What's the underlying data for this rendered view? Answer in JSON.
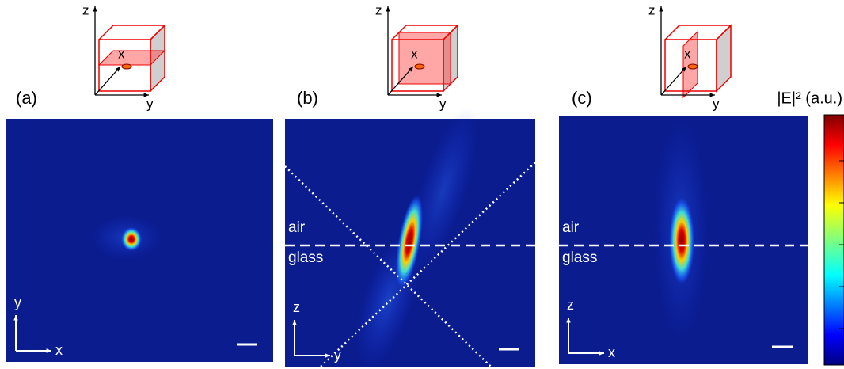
{
  "panels": [
    {
      "label": "(a)",
      "inset_axes": [
        "z",
        "y",
        "x"
      ],
      "axes": [
        "y",
        "x"
      ]
    },
    {
      "label": "(b)",
      "inset_axes": [
        "z",
        "y",
        "x"
      ],
      "axes": [
        "z",
        "y"
      ],
      "regions": [
        "air",
        "glass"
      ]
    },
    {
      "label": "(c)",
      "inset_axes": [
        "z",
        "y",
        "x"
      ],
      "axes": [
        "z",
        "x"
      ],
      "regions": [
        "air",
        "glass"
      ]
    }
  ],
  "colorbar": {
    "label": "|E|² (a.u.)"
  }
}
